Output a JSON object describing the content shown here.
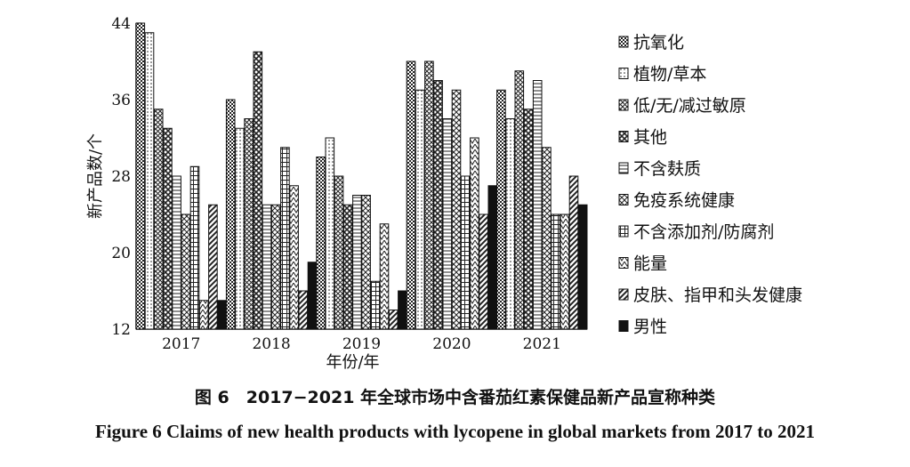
{
  "chart_data": {
    "type": "bar",
    "categories": [
      "2017",
      "2018",
      "2019",
      "2020",
      "2021"
    ],
    "series": [
      {
        "name": "抗氧化",
        "values": [
          44,
          36,
          30,
          40,
          37
        ]
      },
      {
        "name": "植物/草本",
        "values": [
          43,
          33,
          32,
          37,
          34
        ]
      },
      {
        "name": "低/无/减过敏原",
        "values": [
          35,
          34,
          28,
          40,
          39
        ]
      },
      {
        "name": "其他",
        "values": [
          33,
          41,
          25,
          38,
          35
        ]
      },
      {
        "name": "不含麸质",
        "values": [
          28,
          25,
          26,
          34,
          38
        ]
      },
      {
        "name": "免疫系统健康",
        "values": [
          24,
          25,
          26,
          37,
          31
        ]
      },
      {
        "name": "不含添加剂/防腐剂",
        "values": [
          29,
          31,
          17,
          28,
          24
        ]
      },
      {
        "name": "能量",
        "values": [
          15,
          27,
          23,
          32,
          24
        ]
      },
      {
        "name": "皮肤、指甲和头发健康",
        "values": [
          25,
          16,
          14,
          24,
          28
        ]
      },
      {
        "name": "男性",
        "values": [
          15,
          19,
          16,
          27,
          25
        ]
      }
    ],
    "xlabel": "年份/年",
    "ylabel": "新产品数/个",
    "ylim": [
      12,
      44
    ],
    "yticks": [
      12,
      20,
      28,
      36,
      44
    ],
    "legend_position": "right"
  },
  "caption": {
    "cn": "图 6　2017−2021 年全球市场中含番茄红素保健品新产品宣称种类",
    "en": "Figure 6 Claims of new health products with lycopene in global markets from 2017 to 2021"
  }
}
